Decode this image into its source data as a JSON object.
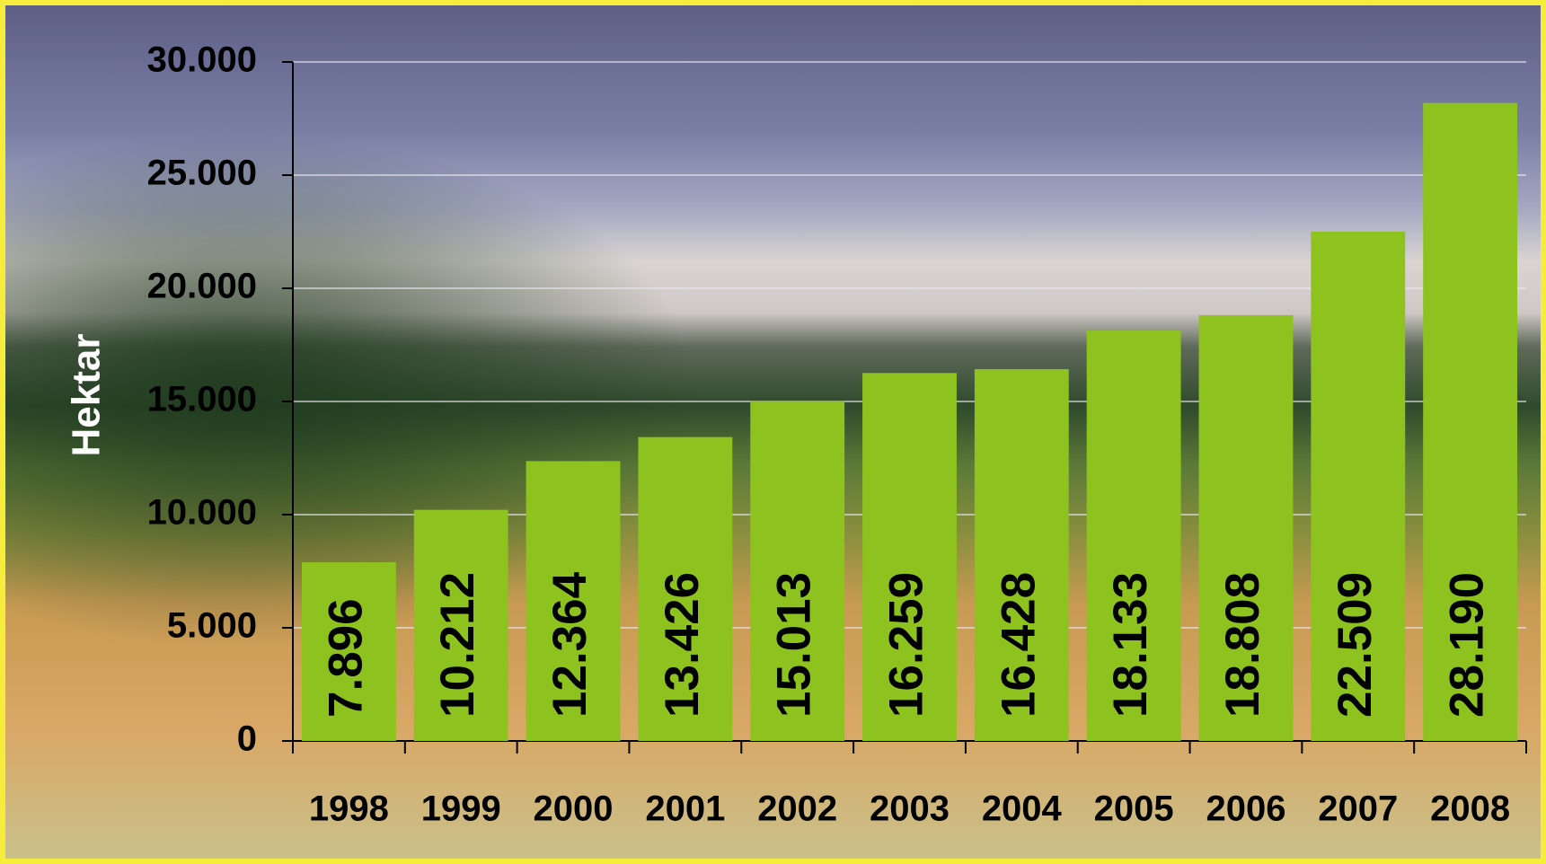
{
  "chart_data": {
    "type": "bar",
    "ylabel": "Hektar",
    "categories": [
      "1998",
      "1999",
      "2000",
      "2001",
      "2002",
      "2003",
      "2004",
      "2005",
      "2006",
      "2007",
      "2008"
    ],
    "values": [
      7896,
      10212,
      12364,
      13426,
      15013,
      16259,
      16428,
      18133,
      18808,
      22509,
      28190
    ],
    "value_labels": [
      "7.896",
      "10.212",
      "12.364",
      "13.426",
      "15.013",
      "16.259",
      "16.428",
      "18.133",
      "18.808",
      "22.509",
      "28.190"
    ],
    "color": "#8dc21f",
    "ylim": [
      0,
      30000
    ],
    "yticks": [
      0,
      {
        "value": 5000,
        "label": "5.000"
      },
      {
        "value": 10000,
        "label": "10.000"
      },
      {
        "value": 15000,
        "label": "15.000"
      },
      {
        "value": 20000,
        "label": "20.000"
      },
      {
        "value": 25000,
        "label": "25.000"
      },
      {
        "value": 30000,
        "label": "30.000"
      }
    ],
    "grid": true
  }
}
